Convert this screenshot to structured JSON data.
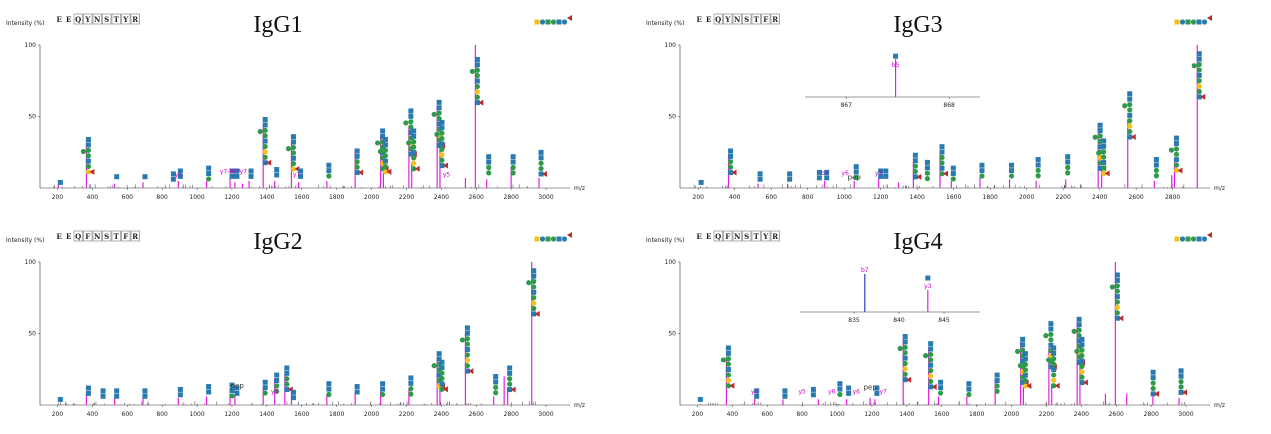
{
  "colors": {
    "spike": "#e020e0",
    "axis": "#333333",
    "glcnac": "#2a7ab0",
    "man": "#2e9a4a",
    "gal": "#f2c21a",
    "fuc": "#c0282a",
    "inset_blue": "#2b3fbf",
    "magenta": "#d000c8"
  },
  "common": {
    "y_axis_label": "Intensity (%)",
    "x_unit": "m/z"
  },
  "chart_data": [
    {
      "type": "bar",
      "panel": "IgG1",
      "title": "IgG1",
      "sequence": [
        "E",
        "E",
        "Q",
        "Y",
        "N",
        "S",
        "T",
        "Y",
        "R"
      ],
      "highlight_index": 4,
      "xlim": [
        100,
        3080
      ],
      "ylim": [
        0,
        100
      ],
      "x_ticks": [
        200,
        400,
        600,
        800,
        1000,
        1200,
        1400,
        1600,
        1800,
        2000,
        2200,
        2400,
        2600,
        2800,
        3000
      ],
      "y_ticks": [
        50,
        100
      ],
      "peaks": [
        [
          205,
          3
        ],
        [
          366,
          32
        ],
        [
          528,
          3
        ],
        [
          690,
          4
        ],
        [
          893,
          5
        ],
        [
          1055,
          5
        ],
        [
          1189,
          7
        ],
        [
          1217,
          4
        ],
        [
          1260,
          3
        ],
        [
          1298,
          5
        ],
        [
          1379,
          43
        ],
        [
          1445,
          5
        ],
        [
          1541,
          32
        ],
        [
          1582,
          4
        ],
        [
          1744,
          5
        ],
        [
          1906,
          27
        ],
        [
          2052,
          36
        ],
        [
          2068,
          32
        ],
        [
          2214,
          42
        ],
        [
          2230,
          18
        ],
        [
          2376,
          57
        ],
        [
          2392,
          38
        ],
        [
          2538,
          7
        ],
        [
          2595,
          100
        ],
        [
          2660,
          6
        ],
        [
          2800,
          15
        ],
        [
          2960,
          7
        ]
      ],
      "labels": [
        {
          "t": "y6",
          "x": 893,
          "y": 8
        },
        {
          "t": "y7-PEP",
          "x": 1190,
          "y": 10
        },
        {
          "t": "y7",
          "x": 1265,
          "y": 10
        },
        {
          "t": "y7",
          "x": 1570,
          "y": 8
        },
        {
          "t": "y5",
          "x": 2430,
          "y": 8
        }
      ],
      "glycans": [
        [
          205,
          6
        ],
        [
          366,
          36
        ],
        [
          528,
          10
        ],
        [
          690,
          10
        ],
        [
          853,
          12
        ],
        [
          893,
          14
        ],
        [
          1055,
          16
        ],
        [
          1189,
          14
        ],
        [
          1217,
          14
        ],
        [
          1298,
          14
        ],
        [
          1379,
          50
        ],
        [
          1445,
          15
        ],
        [
          1541,
          38
        ],
        [
          1582,
          14
        ],
        [
          1744,
          18
        ],
        [
          1906,
          28
        ],
        [
          2052,
          42
        ],
        [
          2068,
          36
        ],
        [
          2214,
          56
        ],
        [
          2230,
          42
        ],
        [
          2376,
          62
        ],
        [
          2392,
          48
        ],
        [
          2595,
          92
        ],
        [
          2660,
          24
        ],
        [
          2800,
          24
        ],
        [
          2960,
          27
        ]
      ],
      "inset": null
    },
    {
      "type": "bar",
      "panel": "IgG3",
      "title": "IgG3",
      "sequence": [
        "E",
        "E",
        "Q",
        "Y",
        "N",
        "S",
        "T",
        "F",
        "R"
      ],
      "highlight_index": 4,
      "xlim": [
        100,
        2950
      ],
      "ylim": [
        0,
        100
      ],
      "x_ticks": [
        200,
        400,
        600,
        800,
        1000,
        1200,
        1400,
        1600,
        1800,
        2000,
        2200,
        2400,
        2600,
        2800
      ],
      "y_ticks": [
        50,
        100
      ],
      "peaks": [
        [
          366,
          22
        ],
        [
          528,
          3
        ],
        [
          690,
          3
        ],
        [
          893,
          5
        ],
        [
          1055,
          5
        ],
        [
          1189,
          7
        ],
        [
          1298,
          4
        ],
        [
          1379,
          18
        ],
        [
          1525,
          24
        ],
        [
          1587,
          5
        ],
        [
          1744,
          7
        ],
        [
          1906,
          6
        ],
        [
          2052,
          5
        ],
        [
          2214,
          6
        ],
        [
          2392,
          45
        ],
        [
          2411,
          12
        ],
        [
          2554,
          48
        ],
        [
          2700,
          5
        ],
        [
          2795,
          9
        ],
        [
          2810,
          18
        ],
        [
          2935,
          100
        ]
      ],
      "labels": [
        {
          "t": "b6",
          "x": 893,
          "y": 9
        },
        {
          "t": "y6",
          "x": 1005,
          "y": 9
        },
        {
          "t": "pep",
          "x": 1055,
          "y": 6
        },
        {
          "t": "y7",
          "x": 1189,
          "y": 9
        }
      ],
      "glycans": [
        [
          205,
          6
        ],
        [
          366,
          28
        ],
        [
          528,
          12
        ],
        [
          690,
          12
        ],
        [
          853,
          13
        ],
        [
          893,
          13
        ],
        [
          1055,
          17
        ],
        [
          1189,
          14
        ],
        [
          1217,
          14
        ],
        [
          1379,
          25
        ],
        [
          1445,
          20
        ],
        [
          1525,
          31
        ],
        [
          1587,
          16
        ],
        [
          1744,
          18
        ],
        [
          1906,
          18
        ],
        [
          2052,
          22
        ],
        [
          2214,
          24
        ],
        [
          2392,
          46
        ],
        [
          2411,
          35
        ],
        [
          2554,
          68
        ],
        [
          2700,
          22
        ],
        [
          2810,
          37
        ],
        [
          2935,
          96
        ]
      ],
      "inset": {
        "xlim": [
          866.6,
          868.3
        ],
        "x_ticks": [
          867,
          868
        ],
        "peak_x": 867.48,
        "peak_h": 0.9,
        "label": "b5",
        "color": "spike"
      }
    },
    {
      "type": "bar",
      "panel": "IgG2",
      "title": "IgG2",
      "sequence": [
        "E",
        "E",
        "Q",
        "F",
        "N",
        "S",
        "T",
        "F",
        "R"
      ],
      "highlight_index": 4,
      "xlim": [
        100,
        3080
      ],
      "ylim": [
        0,
        100
      ],
      "x_ticks": [
        200,
        400,
        600,
        800,
        1000,
        1200,
        1400,
        1600,
        1800,
        2000,
        2200,
        2400,
        2600,
        2800,
        3000
      ],
      "y_ticks": [
        50,
        100
      ],
      "peaks": [
        [
          366,
          8
        ],
        [
          528,
          6
        ],
        [
          690,
          5
        ],
        [
          893,
          5
        ],
        [
          1055,
          6
        ],
        [
          1189,
          8
        ],
        [
          1217,
          7
        ],
        [
          1379,
          11
        ],
        [
          1445,
          18
        ],
        [
          1503,
          21
        ],
        [
          1541,
          10
        ],
        [
          1744,
          8
        ],
        [
          1906,
          9
        ],
        [
          2052,
          10
        ],
        [
          2214,
          11
        ],
        [
          2376,
          33
        ],
        [
          2392,
          23
        ],
        [
          2538,
          50
        ],
        [
          2700,
          6
        ],
        [
          2760,
          20
        ],
        [
          2780,
          12
        ],
        [
          2918,
          100
        ]
      ],
      "labels": [
        {
          "t": "pep",
          "x": 1230,
          "y": 12
        },
        {
          "t": "y7",
          "x": 1445,
          "y": 8
        }
      ],
      "glycans": [
        [
          205,
          6
        ],
        [
          366,
          14
        ],
        [
          450,
          12
        ],
        [
          528,
          12
        ],
        [
          690,
          12
        ],
        [
          893,
          13
        ],
        [
          1055,
          15
        ],
        [
          1189,
          16
        ],
        [
          1217,
          14
        ],
        [
          1379,
          18
        ],
        [
          1445,
          23
        ],
        [
          1503,
          28
        ],
        [
          1541,
          11
        ],
        [
          1744,
          17
        ],
        [
          1906,
          15
        ],
        [
          2052,
          17
        ],
        [
          2214,
          21
        ],
        [
          2376,
          38
        ],
        [
          2392,
          32
        ],
        [
          2538,
          56
        ],
        [
          2700,
          22
        ],
        [
          2780,
          28
        ],
        [
          2918,
          96
        ]
      ],
      "inset": null
    },
    {
      "type": "bar",
      "panel": "IgG4",
      "title": "IgG4",
      "sequence": [
        "E",
        "E",
        "Q",
        "F",
        "N",
        "S",
        "T",
        "Y",
        "R"
      ],
      "highlight_index": 4,
      "xlim": [
        100,
        3080
      ],
      "ylim": [
        0,
        100
      ],
      "x_ticks": [
        200,
        400,
        600,
        800,
        1000,
        1200,
        1400,
        1600,
        1800,
        2000,
        2200,
        2400,
        2600,
        2800,
        3000
      ],
      "y_ticks": [
        50,
        100
      ],
      "peaks": [
        [
          366,
          34
        ],
        [
          528,
          5
        ],
        [
          690,
          4
        ],
        [
          893,
          4
        ],
        [
          1055,
          4
        ],
        [
          1189,
          5
        ],
        [
          1217,
          4
        ],
        [
          1379,
          46
        ],
        [
          1525,
          40
        ],
        [
          1582,
          6
        ],
        [
          1744,
          6
        ],
        [
          1906,
          18
        ],
        [
          2052,
          44
        ],
        [
          2068,
          34
        ],
        [
          2214,
          40
        ],
        [
          2230,
          15
        ],
        [
          2376,
          58
        ],
        [
          2392,
          36
        ],
        [
          2538,
          8
        ],
        [
          2595,
          100
        ],
        [
          2660,
          8
        ],
        [
          2810,
          6
        ],
        [
          2960,
          5
        ]
      ],
      "labels": [
        {
          "t": "y4",
          "x": 528,
          "y": 8
        },
        {
          "t": "y5",
          "x": 800,
          "y": 8
        },
        {
          "t": "y6",
          "x": 970,
          "y": 8
        },
        {
          "t": "y6",
          "x": 1110,
          "y": 8
        },
        {
          "t": "pep",
          "x": 1190,
          "y": 11
        },
        {
          "t": "y7",
          "x": 1265,
          "y": 8
        }
      ],
      "glycans": [
        [
          205,
          6
        ],
        [
          366,
          42
        ],
        [
          528,
          12
        ],
        [
          690,
          12
        ],
        [
          853,
          13
        ],
        [
          1005,
          17
        ],
        [
          1055,
          14
        ],
        [
          1217,
          14
        ],
        [
          1379,
          50
        ],
        [
          1525,
          45
        ],
        [
          1582,
          18
        ],
        [
          1744,
          17
        ],
        [
          1906,
          23
        ],
        [
          2052,
          48
        ],
        [
          2068,
          38
        ],
        [
          2214,
          59
        ],
        [
          2230,
          42
        ],
        [
          2376,
          62
        ],
        [
          2392,
          48
        ],
        [
          2595,
          93
        ],
        [
          2800,
          25
        ],
        [
          2960,
          26
        ]
      ],
      "inset": {
        "xlim": [
          829,
          849
        ],
        "x_ticks": [
          835,
          840,
          845
        ],
        "peak_x": 836.2,
        "peak_h": 0.95,
        "label": "b7",
        "color": "inset_blue",
        "peak2_x": 843.2,
        "peak2_h": 0.55,
        "label2": "y3"
      }
    }
  ]
}
